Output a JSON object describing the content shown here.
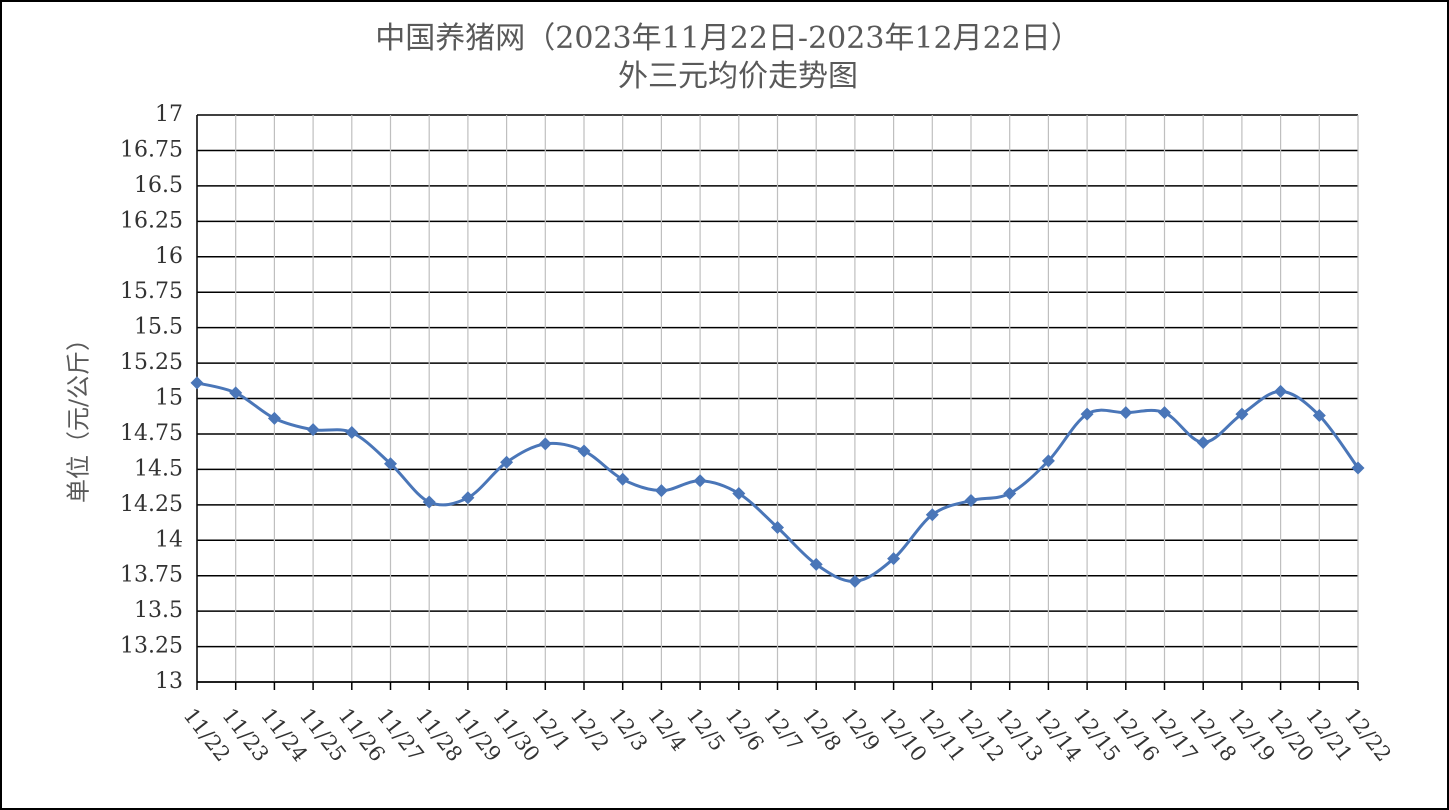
{
  "chart_data": {
    "type": "line",
    "title": "中国养猪网（2023年11月22日-2023年12月22日）",
    "subtitle": "外三元均价走势图",
    "y_label": "单位（元/公斤）",
    "categories": [
      "11/22",
      "11/23",
      "11/24",
      "11/25",
      "11/26",
      "11/27",
      "11/28",
      "11/29",
      "11/30",
      "12/1",
      "12/2",
      "12/3",
      "12/4",
      "12/5",
      "12/6",
      "12/7",
      "12/8",
      "12/9",
      "12/10",
      "12/11",
      "12/12",
      "12/13",
      "12/14",
      "12/15",
      "12/16",
      "12/17",
      "12/18",
      "12/19",
      "12/20",
      "12/21",
      "12/22"
    ],
    "values": [
      15.11,
      15.04,
      14.86,
      14.78,
      14.76,
      14.54,
      14.27,
      14.3,
      14.55,
      14.68,
      14.63,
      14.43,
      14.35,
      14.42,
      14.33,
      14.09,
      13.83,
      13.71,
      13.87,
      14.18,
      14.28,
      14.33,
      14.56,
      14.89,
      14.9,
      14.9,
      14.69,
      14.89,
      15.05,
      14.88,
      14.51
    ],
    "color": "#4a76b8",
    "ylim": [
      13,
      17
    ],
    "yticks": [
      13,
      13.25,
      13.5,
      13.75,
      14,
      14.25,
      14.5,
      14.75,
      15,
      15.25,
      15.5,
      15.75,
      16,
      16.25,
      16.5,
      16.75,
      17
    ],
    "grid": true,
    "smooth": true
  }
}
